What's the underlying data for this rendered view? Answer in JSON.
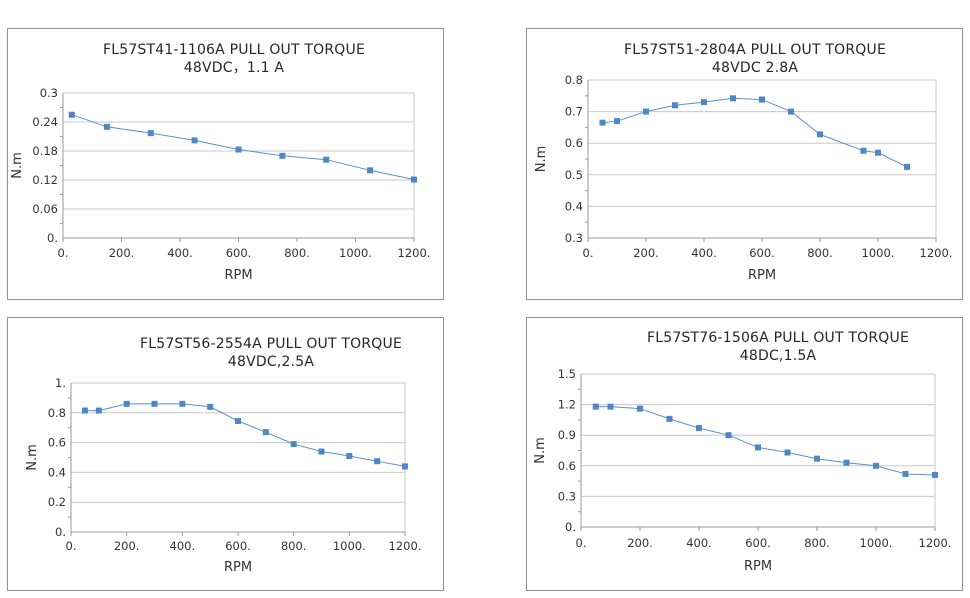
{
  "chart_data": [
    {
      "type": "line",
      "title": "FL57ST41-1106A   PULL  OUT  TORQUE",
      "subtitle": "48VDC，1.1 A",
      "xlabel": "RPM",
      "ylabel": "N.m",
      "xlim": [
        0,
        1200
      ],
      "ylim": [
        0,
        0.3
      ],
      "x_ticks": [
        "0.",
        "200.",
        "400.",
        "600.",
        "800.",
        "1000.",
        "1200."
      ],
      "y_ticks": [
        "0.",
        "0.06",
        "0.12",
        "0.18",
        "0.24",
        "0.3"
      ],
      "y_tick_values": [
        0,
        0.06,
        0.12,
        0.18,
        0.24,
        0.3
      ],
      "grid": true,
      "x": [
        30,
        150,
        300,
        450,
        600,
        750,
        900,
        1050,
        1200
      ],
      "y": [
        0.255,
        0.23,
        0.217,
        0.202,
        0.183,
        0.17,
        0.162,
        0.14,
        0.121
      ]
    },
    {
      "type": "line",
      "title": "FL57ST51-2804A  PULL  OUT  TORQUE",
      "subtitle": "48VDC 2.8A",
      "xlabel": "RPM",
      "ylabel": "N.m",
      "xlim": [
        0,
        1200
      ],
      "ylim": [
        0.3,
        0.8
      ],
      "x_ticks": [
        "0.",
        "200.",
        "400.",
        "600.",
        "800.",
        "1000.",
        "1200."
      ],
      "y_ticks": [
        "0.3",
        "0.4",
        "0.5",
        "0.6",
        "0.7",
        "0.8"
      ],
      "y_tick_values": [
        0.3,
        0.4,
        0.5,
        0.6,
        0.7,
        0.8
      ],
      "grid": true,
      "x": [
        50,
        100,
        200,
        300,
        400,
        500,
        600,
        700,
        800,
        950,
        1000,
        1100
      ],
      "y": [
        0.665,
        0.67,
        0.7,
        0.72,
        0.73,
        0.742,
        0.738,
        0.7,
        0.628,
        0.576,
        0.57,
        0.525
      ]
    },
    {
      "type": "line",
      "title": "FL57ST56-2554A   PULL  OUT  TORQUE",
      "subtitle": "48VDC,2.5A",
      "xlabel": "RPM",
      "ylabel": "N.m",
      "xlim": [
        0,
        1200
      ],
      "ylim": [
        0,
        1
      ],
      "x_ticks": [
        "0.",
        "200.",
        "400.",
        "600.",
        "800.",
        "1000.",
        "1200."
      ],
      "y_ticks": [
        "0.",
        "0.2",
        "0.4",
        "0.6",
        "0.8",
        "1."
      ],
      "y_tick_values": [
        0,
        0.2,
        0.4,
        0.6,
        0.8,
        1
      ],
      "grid": true,
      "x": [
        50,
        100,
        200,
        300,
        400,
        500,
        600,
        700,
        800,
        900,
        1000,
        1100,
        1200
      ],
      "y": [
        0.815,
        0.815,
        0.86,
        0.86,
        0.86,
        0.84,
        0.745,
        0.67,
        0.59,
        0.54,
        0.51,
        0.475,
        0.44
      ]
    },
    {
      "type": "line",
      "title": "FL57ST76-1506A  PULL  OUT  TORQUE",
      "subtitle": "48DC,1.5A",
      "xlabel": "RPM",
      "ylabel": "N.m",
      "xlim": [
        0,
        1200
      ],
      "ylim": [
        0,
        1.5
      ],
      "x_ticks": [
        "0.",
        "200.",
        "400.",
        "600.",
        "800.",
        "1000.",
        "1200."
      ],
      "y_ticks": [
        "0.",
        "0.3",
        "0.6",
        "0.9",
        "1.2",
        "1.5"
      ],
      "y_tick_values": [
        0,
        0.3,
        0.6,
        0.9,
        1.2,
        1.5
      ],
      "grid": true,
      "x": [
        50,
        100,
        200,
        300,
        400,
        500,
        600,
        700,
        800,
        900,
        1000,
        1100,
        1200
      ],
      "y": [
        1.18,
        1.18,
        1.16,
        1.06,
        0.97,
        0.9,
        0.78,
        0.73,
        0.67,
        0.63,
        0.6,
        0.52,
        0.51
      ]
    }
  ]
}
